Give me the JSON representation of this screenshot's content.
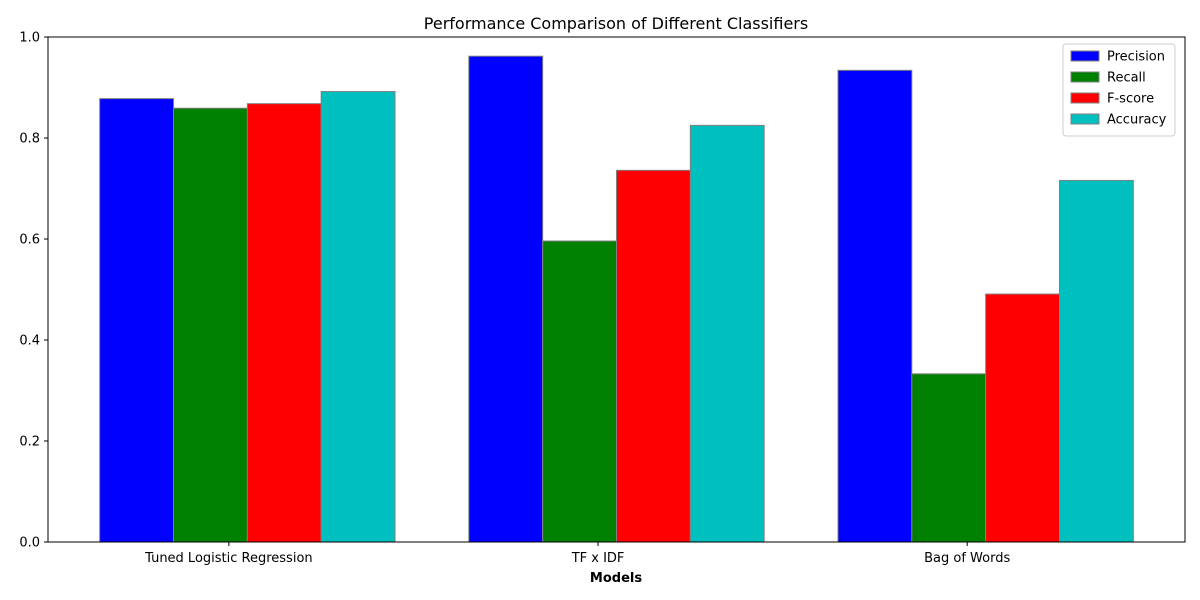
{
  "chart_data": {
    "type": "bar",
    "title": "Performance Comparison of Different Classifiers",
    "xlabel": "Models",
    "ylabel": "",
    "categories": [
      "Tuned Logistic Regression",
      "TF x IDF",
      "Bag of Words"
    ],
    "ylim": [
      0,
      1.0
    ],
    "yticks": [
      "0.0",
      "0.2",
      "0.4",
      "0.6",
      "0.8",
      "1.0"
    ],
    "ytick_values": [
      0.0,
      0.2,
      0.4,
      0.6,
      0.8,
      1.0
    ],
    "grid": false,
    "legend_position": "top-right",
    "series": [
      {
        "name": "Precision",
        "color": "#0000ff",
        "values": [
          0.878,
          0.962,
          0.934
        ]
      },
      {
        "name": "Recall",
        "color": "#008000",
        "values": [
          0.859,
          0.596,
          0.333
        ]
      },
      {
        "name": "F-score",
        "color": "#ff0000",
        "values": [
          0.868,
          0.736,
          0.491
        ]
      },
      {
        "name": "Accuracy",
        "color": "#00bfbf",
        "values": [
          0.892,
          0.825,
          0.716
        ]
      }
    ]
  }
}
